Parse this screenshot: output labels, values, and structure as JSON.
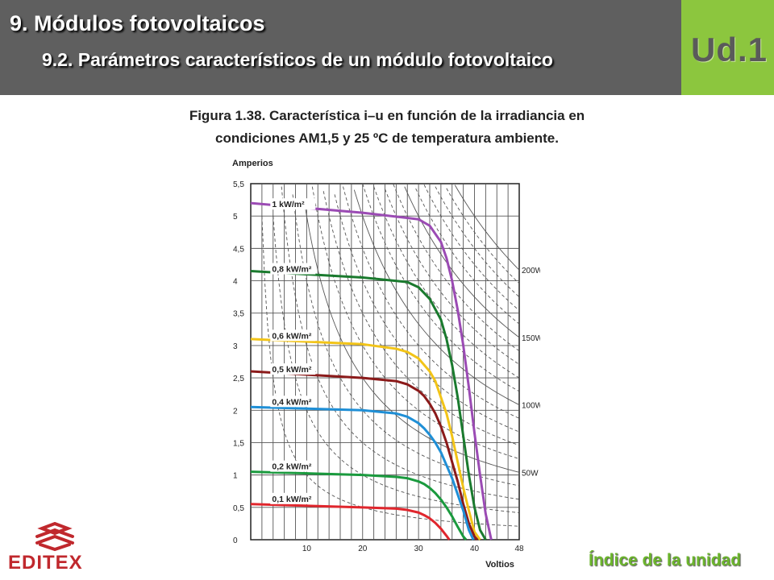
{
  "header": {
    "title": "9. Módulos fotovoltaicos",
    "subtitle": "9.2. Parámetros característicos de un módulo fotovoltaico",
    "unit_label": "Ud.1"
  },
  "caption": {
    "line1": "Figura 1.38. Característica i–u en función de la irradiancia en",
    "line2": "condiciones AM1,5 y 25 ºC de temperatura ambiente."
  },
  "footer": {
    "logo_text": "EDITEX",
    "index_link": "Índice de la unidad"
  },
  "chart_data": {
    "type": "line",
    "ylabel": "Amperios",
    "xlabel": "Voltios",
    "xlim": [
      0,
      48
    ],
    "ylim": [
      0,
      5.5
    ],
    "x_ticks": [
      "10",
      "20",
      "30",
      "40",
      "48"
    ],
    "y_ticks": [
      "0",
      "0,5",
      "1",
      "1,5",
      "2",
      "2,5",
      "3",
      "3,5",
      "4",
      "4,5",
      "5",
      "5,5"
    ],
    "grid": true,
    "power_curves": [
      {
        "label": "50W",
        "watts": 50
      },
      {
        "label": "100W",
        "watts": 100
      },
      {
        "label": "150W",
        "watts": 150
      },
      {
        "label": "200W",
        "watts": 200
      }
    ],
    "series": [
      {
        "name": "1 kW/m²",
        "color": "#9b4bb4",
        "x": [
          0,
          20,
          30,
          32,
          34,
          35,
          36,
          37,
          38,
          39,
          40,
          41,
          42,
          43
        ],
        "y": [
          5.2,
          5.05,
          4.95,
          4.85,
          4.6,
          4.35,
          4.0,
          3.55,
          3.0,
          2.35,
          1.65,
          1.0,
          0.4,
          0
        ]
      },
      {
        "name": "0,8 kW/m²",
        "color": "#1a7a2e",
        "x": [
          0,
          20,
          28,
          30,
          32,
          34,
          35,
          36,
          37,
          38,
          39,
          40,
          41,
          42
        ],
        "y": [
          4.15,
          4.05,
          3.98,
          3.9,
          3.72,
          3.4,
          3.1,
          2.7,
          2.2,
          1.6,
          1.0,
          0.5,
          0.15,
          0
        ]
      },
      {
        "name": "0,6 kW/m²",
        "color": "#f2c418",
        "x": [
          0,
          20,
          26,
          28,
          30,
          32,
          33,
          34,
          35,
          36,
          37,
          38,
          39,
          40,
          41
        ],
        "y": [
          3.1,
          3.02,
          2.95,
          2.9,
          2.8,
          2.6,
          2.45,
          2.2,
          1.95,
          1.6,
          1.2,
          0.8,
          0.45,
          0.12,
          0
        ]
      },
      {
        "name": "0,5 kW/m²",
        "color": "#8b1a1a",
        "x": [
          0,
          20,
          26,
          28,
          30,
          31,
          32,
          33,
          34,
          35,
          36,
          37,
          38,
          39,
          40,
          40.5
        ],
        "y": [
          2.6,
          2.5,
          2.45,
          2.4,
          2.3,
          2.22,
          2.1,
          1.95,
          1.75,
          1.5,
          1.2,
          0.9,
          0.55,
          0.25,
          0.05,
          0
        ]
      },
      {
        "name": "0,4 kW/m²",
        "color": "#1f8fd6",
        "x": [
          0,
          20,
          26,
          28,
          30,
          31,
          32,
          33,
          34,
          35,
          36,
          37,
          38,
          39,
          39.8
        ],
        "y": [
          2.05,
          2.0,
          1.95,
          1.9,
          1.8,
          1.72,
          1.62,
          1.5,
          1.35,
          1.15,
          0.95,
          0.7,
          0.45,
          0.15,
          0
        ]
      },
      {
        "name": "0,2 kW/m²",
        "color": "#1a9a3e",
        "x": [
          0,
          20,
          26,
          28,
          30,
          31,
          32,
          33,
          34,
          35,
          36,
          37,
          38,
          38.5
        ],
        "y": [
          1.05,
          1.0,
          0.97,
          0.95,
          0.9,
          0.86,
          0.8,
          0.72,
          0.62,
          0.5,
          0.36,
          0.2,
          0.05,
          0
        ]
      },
      {
        "name": "0,1 kW/m²",
        "color": "#e0262d",
        "x": [
          0,
          20,
          26,
          28,
          30,
          31,
          32,
          33,
          34,
          35,
          35.5
        ],
        "y": [
          0.55,
          0.5,
          0.48,
          0.46,
          0.42,
          0.38,
          0.33,
          0.26,
          0.17,
          0.06,
          0
        ]
      }
    ]
  }
}
